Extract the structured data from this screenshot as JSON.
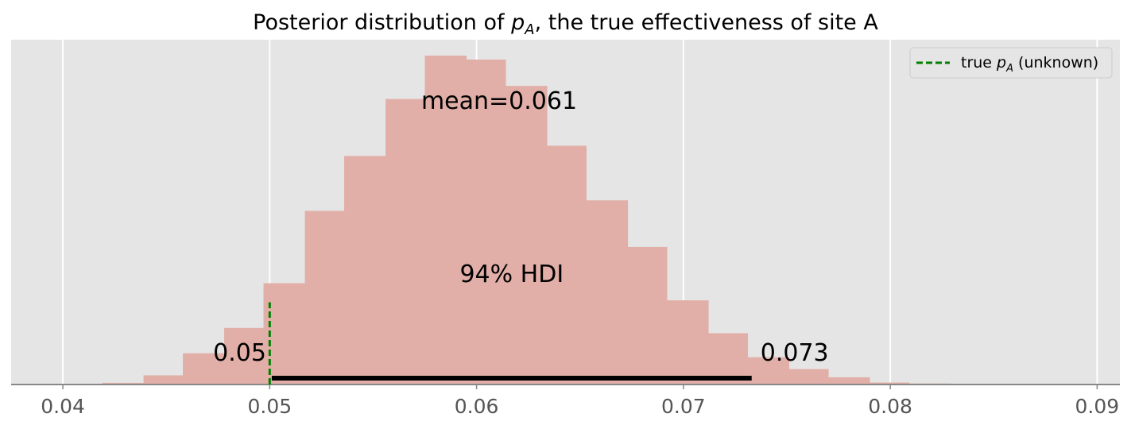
{
  "chart_data": {
    "type": "bar",
    "title_prefix": "Posterior distribution of ",
    "title_symbol": "p",
    "title_symbol_sub": "A",
    "title_suffix": ", the true effectiveness of site A",
    "xlim": [
      0.0375,
      0.0911
    ],
    "ylim": [
      0,
      1.0
    ],
    "grid": true,
    "xticks": [
      0.04,
      0.05,
      0.06,
      0.07,
      0.08,
      0.09
    ],
    "xtick_labels": [
      "0.04",
      "0.05",
      "0.06",
      "0.07",
      "0.08",
      "0.09"
    ],
    "histogram": {
      "color": "#e2afa8",
      "bin_edges": [
        0.0419,
        0.0439,
        0.0458,
        0.0478,
        0.0497,
        0.0517,
        0.0536,
        0.0556,
        0.0575,
        0.0595,
        0.0614,
        0.0634,
        0.0653,
        0.0673,
        0.0692,
        0.0712,
        0.0731,
        0.0751,
        0.077,
        0.079,
        0.0809,
        0.0829,
        0.0848
      ],
      "heights": [
        0.005,
        0.028,
        0.095,
        0.172,
        0.308,
        0.528,
        0.695,
        0.868,
        1.0,
        0.988,
        0.908,
        0.726,
        0.56,
        0.418,
        0.256,
        0.156,
        0.083,
        0.047,
        0.022,
        0.006,
        0.003,
        0.002
      ]
    },
    "mean_label": "mean=0.061",
    "hdi": {
      "label": "94% HDI",
      "low": 0.0501,
      "high": 0.0733,
      "low_label": "0.05",
      "high_label": "0.073"
    },
    "true_value": {
      "x": 0.05,
      "height": 0.25,
      "color": "#008000",
      "legend_prefix": "true ",
      "legend_symbol": "p",
      "legend_symbol_sub": "A",
      "legend_suffix": " (unknown)",
      "legend_location": "upper right"
    }
  },
  "colors": {
    "plot_background": "#e5e5e5",
    "grid": "#ffffff",
    "axis_line": "#888888",
    "tick_label": "#555555",
    "hdi_line": "#000000"
  }
}
